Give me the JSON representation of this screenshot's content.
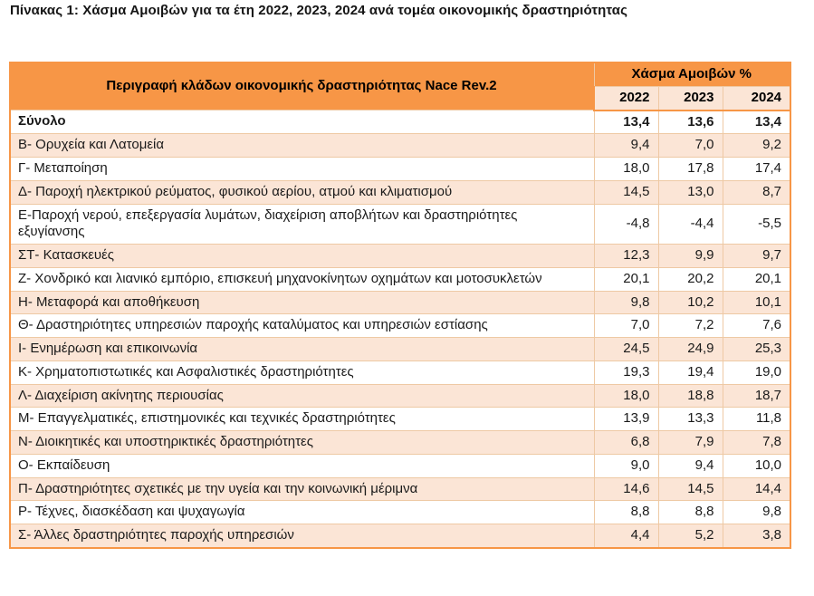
{
  "page": {
    "title": "Πίνακας 1: Χάσμα Αμοιβών για τα έτη 2022, 2023, 2024 ανά τομέα οικονομικής δραστηριότητας"
  },
  "colors": {
    "header_orange": "#f79646",
    "row_peach": "#fbe5d6",
    "grid_line": "#eec9a4",
    "text": "#1a1a1a"
  },
  "table": {
    "header": {
      "description": "Περιγραφή κλάδων οικονομικής δραστηριότητας Nace Rev.2",
      "group": "Χάσμα Αμοιβών %",
      "years": [
        "2022",
        "2023",
        "2024"
      ]
    },
    "rows": [
      {
        "label": "Σύνολο",
        "values": [
          "13,4",
          "13,6",
          "13,4"
        ],
        "bold": true
      },
      {
        "label": "Β- Ορυχεία και Λατομεία",
        "values": [
          "9,4",
          "7,0",
          "9,2"
        ]
      },
      {
        "label": "Γ- Μεταποίηση",
        "values": [
          "18,0",
          "17,8",
          "17,4"
        ]
      },
      {
        "label": "Δ- Παροχή ηλεκτρικού ρεύματος, φυσικού αερίου, ατμού και κλιματισμού",
        "values": [
          "14,5",
          "13,0",
          "8,7"
        ]
      },
      {
        "label": "Ε-Παροχή νερού, επεξεργασία λυμάτων, διαχείριση αποβλήτων και δραστηριότητες εξυγίανσης",
        "values": [
          "-4,8",
          "-4,4",
          "-5,5"
        ]
      },
      {
        "label": "ΣΤ- Κατασκευές",
        "values": [
          "12,3",
          "9,9",
          "9,7"
        ]
      },
      {
        "label": "Ζ- Χονδρικό και λιανικό εμπόριο, επισκευή μηχανοκίνητων οχημάτων και μοτοσυκλετών",
        "values": [
          "20,1",
          "20,2",
          "20,1"
        ]
      },
      {
        "label": "Η- Μεταφορά και αποθήκευση",
        "values": [
          "9,8",
          "10,2",
          "10,1"
        ]
      },
      {
        "label": "Θ- Δραστηριότητες υπηρεσιών παροχής καταλύματος και υπηρεσιών εστίασης",
        "values": [
          "7,0",
          "7,2",
          "7,6"
        ]
      },
      {
        "label": "Ι- Ενημέρωση και επικοινωνία",
        "values": [
          "24,5",
          "24,9",
          "25,3"
        ]
      },
      {
        "label": "Κ- Χρηματοπιστωτικές και Ασφαλιστικές δραστηριότητες",
        "values": [
          "19,3",
          "19,4",
          "19,0"
        ]
      },
      {
        "label": "Λ- Διαχείριση ακίνητης περιουσίας",
        "values": [
          "18,0",
          "18,8",
          "18,7"
        ]
      },
      {
        "label": "Μ- Επαγγελματικές, επιστημονικές και τεχνικές δραστηριότητες",
        "values": [
          "13,9",
          "13,3",
          "11,8"
        ]
      },
      {
        "label": "Ν- Διοικητικές και υποστηρικτικές δραστηριότητες",
        "values": [
          "6,8",
          "7,9",
          "7,8"
        ]
      },
      {
        "label": "Ο- Εκπαίδευση",
        "values": [
          "9,0",
          "9,4",
          "10,0"
        ]
      },
      {
        "label": "Π- Δραστηριότητες σχετικές με την υγεία και την κοινωνική μέριμνα",
        "values": [
          "14,6",
          "14,5",
          "14,4"
        ]
      },
      {
        "label": "Ρ- Τέχνες, διασκέδαση και ψυχαγωγία",
        "values": [
          "8,8",
          "8,8",
          "9,8"
        ]
      },
      {
        "label": "Σ- Άλλες δραστηριότητες παροχής υπηρεσιών",
        "values": [
          "4,4",
          "5,2",
          "3,8"
        ]
      }
    ]
  }
}
